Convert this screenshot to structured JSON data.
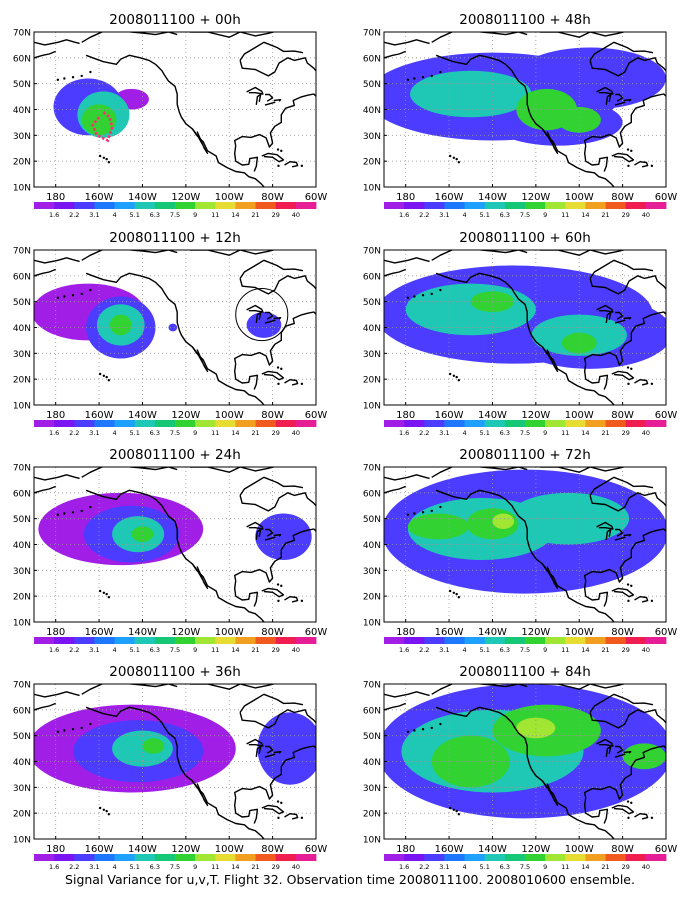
{
  "figure": {
    "caption": "Signal Variance for u,v,T. Flight 32. Observation time 2008011100. 2008010600 ensemble."
  },
  "colors": {
    "background": "#ffffff",
    "coastline": "#000000",
    "grid": "#9a9a9a",
    "box": "#000000",
    "flight_track": "#ff2d6f"
  },
  "colorbar": {
    "labels": [
      "1.6",
      "2.2",
      "3.1",
      "4",
      "5.1",
      "6.3",
      "7.5",
      "9",
      "11",
      "14",
      "21",
      "29",
      "40"
    ],
    "colors": [
      "#a01ee6",
      "#7a14f0",
      "#4b3cff",
      "#1e78ff",
      "#1ea0ff",
      "#1ec8b4",
      "#14c878",
      "#32d232",
      "#a0e632",
      "#e6dc32",
      "#f0a01e",
      "#f05a1e",
      "#f01e50",
      "#e61e96"
    ]
  },
  "chart_data": [
    {
      "type": "heatmap",
      "title": "2008011100 + 00h",
      "xticks": [
        "180",
        "160W",
        "140W",
        "120W",
        "100W",
        "80W",
        "60W"
      ],
      "yticks": [
        "10N",
        "20N",
        "30N",
        "40N",
        "50N",
        "60N",
        "70N"
      ],
      "xlim": [
        -190,
        -60
      ],
      "ylim": [
        10,
        70
      ],
      "grid": true,
      "blobs": [
        {
          "lon": -165,
          "lat": 41,
          "rx": 16,
          "ry": 11,
          "level": 1
        },
        {
          "lon": -158,
          "lat": 38,
          "rx": 12,
          "ry": 9,
          "level": 2
        },
        {
          "lon": -160,
          "lat": 36,
          "rx": 8,
          "ry": 6,
          "level": 3
        },
        {
          "lon": -145,
          "lat": 44,
          "rx": 8,
          "ry": 4,
          "level": 0
        }
      ],
      "flight_track": [
        [
          -160,
          37
        ],
        [
          -163,
          34
        ],
        [
          -161,
          30
        ],
        [
          -156,
          28
        ],
        [
          -154,
          33
        ],
        [
          -155,
          37
        ],
        [
          -158,
          39
        ]
      ]
    },
    {
      "type": "heatmap",
      "title": "2008011100 + 48h",
      "xticks": [
        "180",
        "160W",
        "140W",
        "120W",
        "100W",
        "80W",
        "60W"
      ],
      "yticks": [
        "10N",
        "20N",
        "30N",
        "40N",
        "50N",
        "60N",
        "70N"
      ],
      "xlim": [
        -190,
        -60
      ],
      "ylim": [
        10,
        70
      ],
      "grid": true,
      "blobs": [
        {
          "lon": -140,
          "lat": 45,
          "rx": 58,
          "ry": 17,
          "level": 1
        },
        {
          "lon": -95,
          "lat": 52,
          "rx": 35,
          "ry": 12,
          "level": 1
        },
        {
          "lon": -110,
          "lat": 35,
          "rx": 30,
          "ry": 9,
          "level": 1
        },
        {
          "lon": -150,
          "lat": 46,
          "rx": 28,
          "ry": 9,
          "level": 2
        },
        {
          "lon": -115,
          "lat": 40,
          "rx": 14,
          "ry": 8,
          "level": 3
        },
        {
          "lon": -100,
          "lat": 36,
          "rx": 10,
          "ry": 5,
          "level": 3
        }
      ]
    },
    {
      "type": "heatmap",
      "title": "2008011100 + 12h",
      "xticks": [
        "180",
        "160W",
        "140W",
        "120W",
        "100W",
        "80W",
        "60W"
      ],
      "yticks": [
        "10N",
        "20N",
        "30N",
        "40N",
        "50N",
        "60N",
        "70N"
      ],
      "xlim": [
        -190,
        -60
      ],
      "ylim": [
        10,
        70
      ],
      "grid": true,
      "blobs": [
        {
          "lon": -165,
          "lat": 46,
          "rx": 26,
          "ry": 11,
          "level": 0
        },
        {
          "lon": -150,
          "lat": 40,
          "rx": 16,
          "ry": 12,
          "level": 1
        },
        {
          "lon": -150,
          "lat": 41,
          "rx": 11,
          "ry": 8,
          "level": 2
        },
        {
          "lon": -150,
          "lat": 41,
          "rx": 5,
          "ry": 4,
          "level": 3
        },
        {
          "lon": -84,
          "lat": 41,
          "rx": 8,
          "ry": 5,
          "level": 1
        },
        {
          "lon": -126,
          "lat": 40,
          "rx": 2,
          "ry": 1.5,
          "level": 1
        }
      ],
      "highlight_circle": {
        "lon": -85,
        "lat": 45,
        "r": 12
      }
    },
    {
      "type": "heatmap",
      "title": "2008011100 + 60h",
      "xticks": [
        "180",
        "160W",
        "140W",
        "120W",
        "100W",
        "80W",
        "60W"
      ],
      "yticks": [
        "10N",
        "20N",
        "30N",
        "40N",
        "50N",
        "60N",
        "70N"
      ],
      "xlim": [
        -190,
        -60
      ],
      "ylim": [
        10,
        70
      ],
      "grid": true,
      "blobs": [
        {
          "lon": -130,
          "lat": 45,
          "rx": 64,
          "ry": 19,
          "level": 1
        },
        {
          "lon": -95,
          "lat": 38,
          "rx": 38,
          "ry": 14,
          "level": 1
        },
        {
          "lon": -150,
          "lat": 47,
          "rx": 30,
          "ry": 10,
          "level": 2
        },
        {
          "lon": -100,
          "lat": 37,
          "rx": 22,
          "ry": 8,
          "level": 2
        },
        {
          "lon": -140,
          "lat": 50,
          "rx": 10,
          "ry": 4,
          "level": 3
        },
        {
          "lon": -100,
          "lat": 34,
          "rx": 8,
          "ry": 4,
          "level": 3
        }
      ]
    },
    {
      "type": "heatmap",
      "title": "2008011100 + 24h",
      "xticks": [
        "180",
        "160W",
        "140W",
        "120W",
        "100W",
        "80W",
        "60W"
      ],
      "yticks": [
        "10N",
        "20N",
        "30N",
        "40N",
        "50N",
        "60N",
        "70N"
      ],
      "xlim": [
        -190,
        -60
      ],
      "ylim": [
        10,
        70
      ],
      "grid": true,
      "blobs": [
        {
          "lon": -150,
          "lat": 46,
          "rx": 38,
          "ry": 14,
          "level": 0
        },
        {
          "lon": -145,
          "lat": 44,
          "rx": 22,
          "ry": 11,
          "level": 1
        },
        {
          "lon": -142,
          "lat": 44,
          "rx": 12,
          "ry": 7,
          "level": 2
        },
        {
          "lon": -140,
          "lat": 44,
          "rx": 5,
          "ry": 3,
          "level": 3
        },
        {
          "lon": -75,
          "lat": 43,
          "rx": 13,
          "ry": 9,
          "level": 1
        }
      ]
    },
    {
      "type": "heatmap",
      "title": "2008011100 + 72h",
      "xticks": [
        "180",
        "160W",
        "140W",
        "120W",
        "100W",
        "80W",
        "60W"
      ],
      "yticks": [
        "10N",
        "20N",
        "30N",
        "40N",
        "50N",
        "60N",
        "70N"
      ],
      "xlim": [
        -190,
        -60
      ],
      "ylim": [
        10,
        70
      ],
      "grid": true,
      "blobs": [
        {
          "lon": -125,
          "lat": 45,
          "rx": 66,
          "ry": 24,
          "level": 1
        },
        {
          "lon": -145,
          "lat": 46,
          "rx": 34,
          "ry": 12,
          "level": 2
        },
        {
          "lon": -105,
          "lat": 50,
          "rx": 28,
          "ry": 10,
          "level": 2
        },
        {
          "lon": -165,
          "lat": 47,
          "rx": 14,
          "ry": 5,
          "level": 3
        },
        {
          "lon": -140,
          "lat": 48,
          "rx": 12,
          "ry": 6,
          "level": 3
        },
        {
          "lon": -135,
          "lat": 49,
          "rx": 5,
          "ry": 3,
          "level": 4
        }
      ]
    },
    {
      "type": "heatmap",
      "title": "2008011100 + 36h",
      "xticks": [
        "180",
        "160W",
        "140W",
        "120W",
        "100W",
        "80W",
        "60W"
      ],
      "yticks": [
        "10N",
        "20N",
        "30N",
        "40N",
        "50N",
        "60N",
        "70N"
      ],
      "xlim": [
        -190,
        -60
      ],
      "ylim": [
        10,
        70
      ],
      "grid": true,
      "blobs": [
        {
          "lon": -145,
          "lat": 45,
          "rx": 48,
          "ry": 17,
          "level": 0
        },
        {
          "lon": -142,
          "lat": 44,
          "rx": 30,
          "ry": 12,
          "level": 1
        },
        {
          "lon": -140,
          "lat": 45,
          "rx": 14,
          "ry": 7,
          "level": 2
        },
        {
          "lon": -135,
          "lat": 46,
          "rx": 5,
          "ry": 3,
          "level": 3
        },
        {
          "lon": -72,
          "lat": 45,
          "rx": 15,
          "ry": 14,
          "level": 1
        }
      ]
    },
    {
      "type": "heatmap",
      "title": "2008011100 + 84h",
      "xticks": [
        "180",
        "160W",
        "140W",
        "120W",
        "100W",
        "80W",
        "60W"
      ],
      "yticks": [
        "10N",
        "20N",
        "30N",
        "40N",
        "50N",
        "60N",
        "70N"
      ],
      "xlim": [
        -190,
        -60
      ],
      "ylim": [
        10,
        70
      ],
      "grid": true,
      "blobs": [
        {
          "lon": -125,
          "lat": 44,
          "rx": 68,
          "ry": 26,
          "level": 1
        },
        {
          "lon": -140,
          "lat": 44,
          "rx": 42,
          "ry": 16,
          "level": 2
        },
        {
          "lon": -115,
          "lat": 52,
          "rx": 25,
          "ry": 10,
          "level": 3
        },
        {
          "lon": -150,
          "lat": 40,
          "rx": 18,
          "ry": 10,
          "level": 3
        },
        {
          "lon": -120,
          "lat": 53,
          "rx": 9,
          "ry": 4,
          "level": 4
        },
        {
          "lon": -70,
          "lat": 42,
          "rx": 10,
          "ry": 5,
          "level": 3
        }
      ]
    }
  ]
}
